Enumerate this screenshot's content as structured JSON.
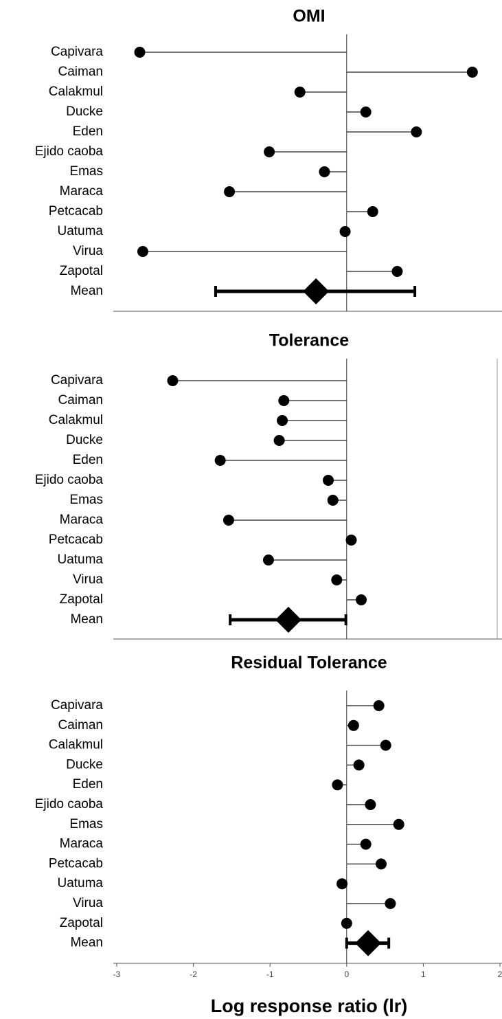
{
  "chart_data": [
    {
      "type": "dot",
      "title": "OMI",
      "categories": [
        "Capivara",
        "Caiman",
        "Calakmul",
        "Ducke",
        "Eden",
        "Ejido caoba",
        "Emas",
        "Maraca",
        "Petcacab",
        "Uatuma",
        "Virua",
        "Zapotal"
      ],
      "values": [
        -2.7,
        1.64,
        -0.61,
        0.25,
        0.91,
        -1.01,
        -0.29,
        -1.53,
        0.34,
        -0.02,
        -2.66,
        0.66
      ],
      "mean": {
        "label": "Mean",
        "value": -0.4,
        "low": -1.71,
        "high": 0.89
      },
      "xlim": [
        -3,
        2
      ],
      "color": "#000000"
    },
    {
      "type": "dot",
      "title": "Tolerance",
      "categories": [
        "Capivara",
        "Caiman",
        "Calakmul",
        "Ducke",
        "Eden",
        "Ejido caoba",
        "Emas",
        "Maraca",
        "Petcacab",
        "Uatuma",
        "Virua",
        "Zapotal"
      ],
      "values": [
        -2.27,
        -0.82,
        -0.84,
        -0.88,
        -1.65,
        -0.24,
        -0.18,
        -1.54,
        0.06,
        -1.02,
        -0.13,
        0.19
      ],
      "mean": {
        "label": "Mean",
        "value": -0.76,
        "low": -1.52,
        "high": -0.01
      },
      "xlim": [
        -3,
        2
      ],
      "color": "#000000"
    },
    {
      "type": "dot",
      "title": "Residual Tolerance",
      "categories": [
        "Capivara",
        "Caiman",
        "Calakmul",
        "Ducke",
        "Eden",
        "Ejido caoba",
        "Emas",
        "Maraca",
        "Petcacab",
        "Uatuma",
        "Virua",
        "Zapotal"
      ],
      "values": [
        0.42,
        0.09,
        0.51,
        0.16,
        -0.12,
        0.31,
        0.68,
        0.25,
        0.45,
        -0.06,
        0.57,
        0
      ],
      "mean": {
        "label": "Mean",
        "value": 0.28,
        "low": 0,
        "high": 0.55
      },
      "xlim": [
        -3,
        2
      ],
      "xticks": [
        -3,
        -2,
        -1,
        0,
        1,
        2
      ],
      "xlabel": "Log response ratio (lr)",
      "color": "#000000"
    }
  ]
}
